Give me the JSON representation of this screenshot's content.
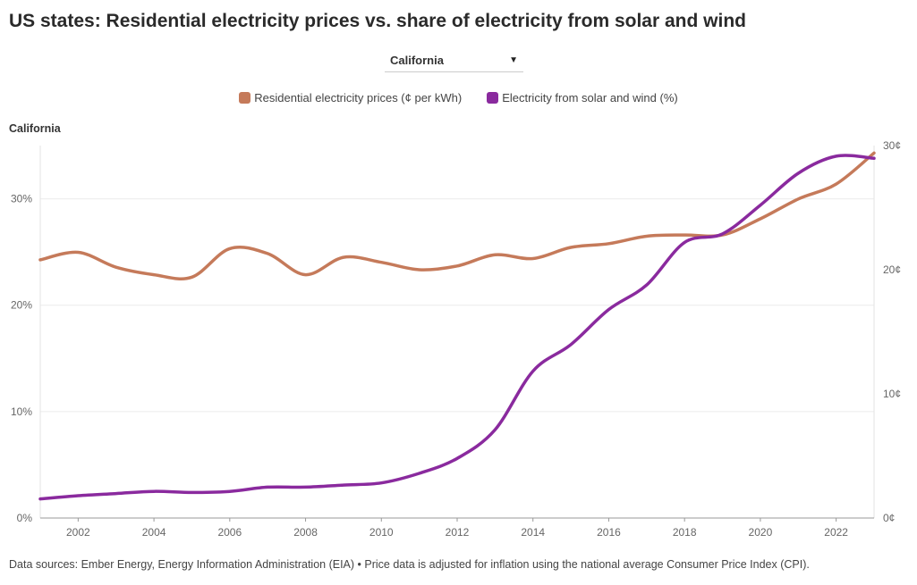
{
  "title": "US states: Residential electricity prices vs. share of electricity from solar and wind",
  "dropdown": {
    "selected": "California"
  },
  "legend": [
    {
      "label": "Residential electricity prices (¢ per kWh)",
      "color": "#c57a5a"
    },
    {
      "label": "Electricity from solar and wind (%)",
      "color": "#8a2a9e"
    }
  ],
  "footer": "Data sources: Ember Energy, Energy Information Administration (EIA) • Price data is adjusted for inflation using the national average Consumer Price Index (CPI).",
  "chart_data": {
    "type": "line",
    "subtitle": "California",
    "x_ticks": [
      "2002",
      "2004",
      "2006",
      "2008",
      "2010",
      "2012",
      "2014",
      "2016",
      "2018",
      "2020",
      "2022"
    ],
    "y_left_ticks": [
      "0%",
      "10%",
      "20%",
      "30%"
    ],
    "y_right_ticks": [
      "0¢",
      "10¢",
      "20¢",
      "30¢"
    ],
    "x_range": [
      2001,
      2023
    ],
    "y_left_range": [
      0,
      35
    ],
    "y_right_range": [
      0,
      30
    ],
    "grid": true,
    "series": [
      {
        "name": "Residential electricity prices (¢ per kWh)",
        "axis": "right",
        "color": "#c57a5a",
        "x": [
          2001,
          2002,
          2003,
          2004,
          2005,
          2006,
          2007,
          2008,
          2009,
          2010,
          2011,
          2012,
          2013,
          2014,
          2015,
          2016,
          2017,
          2018,
          2019,
          2020,
          2021,
          2022,
          2023
        ],
        "values": [
          20.8,
          21.4,
          20.2,
          19.6,
          19.4,
          21.7,
          21.3,
          19.6,
          21.0,
          20.6,
          20.0,
          20.3,
          21.2,
          20.9,
          21.8,
          22.1,
          22.7,
          22.8,
          22.8,
          24.1,
          25.7,
          26.9,
          29.4
        ]
      },
      {
        "name": "Electricity from solar and wind (%)",
        "axis": "left",
        "color": "#8a2a9e",
        "x": [
          2001,
          2002,
          2003,
          2004,
          2005,
          2006,
          2007,
          2008,
          2009,
          2010,
          2011,
          2012,
          2013,
          2014,
          2015,
          2016,
          2017,
          2018,
          2019,
          2020,
          2021,
          2022,
          2023
        ],
        "values": [
          1.8,
          2.1,
          2.3,
          2.5,
          2.4,
          2.5,
          2.9,
          2.9,
          3.1,
          3.3,
          4.2,
          5.6,
          8.3,
          13.8,
          16.3,
          19.6,
          21.9,
          25.9,
          26.7,
          29.4,
          32.4,
          34.0,
          33.8
        ]
      }
    ]
  }
}
